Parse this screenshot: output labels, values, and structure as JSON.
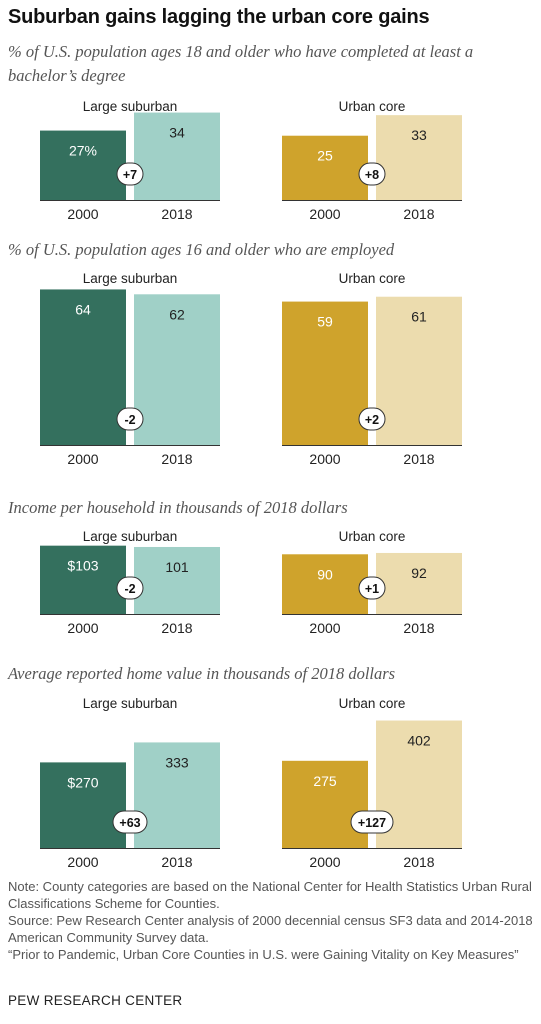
{
  "title": "Suburban gains lagging the urban core gains",
  "colors": {
    "suburban_2000": "#34705E",
    "suburban_2018": "#A0D0C7",
    "urban_2000": "#CFA32C",
    "urban_2018": "#ECDCAE",
    "axis": "#333333",
    "badge_stroke": "#333333"
  },
  "chart_data": [
    {
      "type": "bar",
      "subtitle": "% of U.S. population ages 18 and older who have completed at least a bachelor’s degree",
      "ylim": [
        0,
        35
      ],
      "panels": [
        {
          "name": "Large suburban",
          "categories": [
            "2000",
            "2018"
          ],
          "values": [
            27,
            34
          ],
          "labels": [
            "27%",
            "34"
          ],
          "change": "+7"
        },
        {
          "name": "Urban core",
          "categories": [
            "2000",
            "2018"
          ],
          "values": [
            25,
            33
          ],
          "labels": [
            "25",
            "33"
          ],
          "change": "+8"
        }
      ]
    },
    {
      "type": "bar",
      "subtitle": "% of U.S. population ages 16 and older who are employed",
      "ylim": [
        0,
        65
      ],
      "panels": [
        {
          "name": "Large suburban",
          "categories": [
            "2000",
            "2018"
          ],
          "values": [
            64,
            62
          ],
          "labels": [
            "64",
            "62"
          ],
          "change": "-2"
        },
        {
          "name": "Urban core",
          "categories": [
            "2000",
            "2018"
          ],
          "values": [
            59,
            61
          ],
          "labels": [
            "59",
            "61"
          ],
          "change": "+2"
        }
      ]
    },
    {
      "type": "bar",
      "subtitle": "Income per household in thousands of 2018 dollars",
      "ylim": [
        0,
        104
      ],
      "panels": [
        {
          "name": "Large suburban",
          "categories": [
            "2000",
            "2018"
          ],
          "values": [
            103,
            101
          ],
          "labels": [
            "$103",
            "101"
          ],
          "change": "-2"
        },
        {
          "name": "Urban core",
          "categories": [
            "2000",
            "2018"
          ],
          "values": [
            90,
            92
          ],
          "labels": [
            "90",
            "92"
          ],
          "change": "+1"
        }
      ]
    },
    {
      "type": "bar",
      "subtitle": "Average reported home value in thousands of 2018 dollars",
      "ylim": [
        0,
        410
      ],
      "panels": [
        {
          "name": "Large suburban",
          "categories": [
            "2000",
            "2018"
          ],
          "values": [
            270,
            333
          ],
          "labels": [
            "$270",
            "333"
          ],
          "change": "+63"
        },
        {
          "name": "Urban core",
          "categories": [
            "2000",
            "2018"
          ],
          "values": [
            275,
            402
          ],
          "labels": [
            "275",
            "402"
          ],
          "change": "+127"
        }
      ]
    }
  ],
  "notes": [
    "Note: County categories are based on the National Center for Health Statistics Urban Rural Classifications Scheme for Counties.",
    "Source: Pew Research Center analysis of 2000 decennial census SF3 data and 2014-2018 American Community Survey data.",
    "“Prior to Pandemic, Urban Core Counties in U.S. were Gaining Vitality on Key Measures”"
  ],
  "org": "PEW RESEARCH CENTER"
}
